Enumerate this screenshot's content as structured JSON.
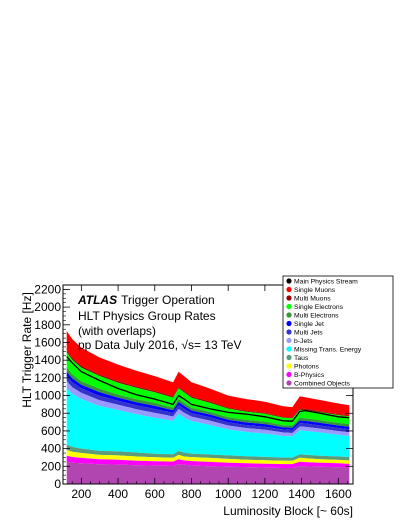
{
  "chart_data": {
    "type": "area",
    "stacked": true,
    "title": "",
    "annotation": {
      "experiment": "ATLAS",
      "line1_rest": "Trigger Operation",
      "line2": "HLT Physics Group Rates",
      "line3": "(with overlaps)",
      "line4_prefix": "pp Data July 2016, ",
      "line4_root": "√s",
      "line4_suffix": "= 13 TeV"
    },
    "xlabel": "Luminosity Block [~ 60s]",
    "ylabel": "HLT Trigger Rate [Hz]",
    "xlim": [
      100,
      1680
    ],
    "ylim": [
      0,
      2250
    ],
    "xticks": [
      200,
      400,
      600,
      800,
      1000,
      1200,
      1400,
      1600
    ],
    "yticks": [
      0,
      200,
      400,
      600,
      800,
      1000,
      1200,
      1400,
      1600,
      1800,
      2000,
      2200
    ],
    "legend_position": "top-right",
    "x": [
      120,
      150,
      200,
      300,
      400,
      500,
      600,
      700,
      730,
      760,
      800,
      900,
      1000,
      1100,
      1200,
      1300,
      1350,
      1390,
      1420,
      1500,
      1600,
      1660
    ],
    "total": [
      1730,
      1640,
      1540,
      1430,
      1350,
      1280,
      1220,
      1150,
      1270,
      1220,
      1150,
      1080,
      1000,
      960,
      930,
      880,
      870,
      990,
      980,
      950,
      910,
      890
    ],
    "series": [
      {
        "name": "Combined Objects",
        "color": "#b146b1",
        "values": [
          250,
          240,
          235,
          225,
          220,
          215,
          210,
          205,
          230,
          220,
          210,
          205,
          200,
          195,
          190,
          185,
          185,
          210,
          205,
          200,
          195,
          190
        ]
      },
      {
        "name": "B-Physics",
        "color": "#ff00ff",
        "values": [
          70,
          65,
          60,
          55,
          55,
          50,
          50,
          50,
          55,
          50,
          50,
          50,
          45,
          45,
          45,
          45,
          45,
          50,
          50,
          45,
          45,
          45
        ]
      },
      {
        "name": "Photons",
        "color": "#ffff00",
        "values": [
          65,
          60,
          55,
          50,
          50,
          50,
          45,
          45,
          50,
          45,
          45,
          45,
          45,
          40,
          40,
          40,
          40,
          45,
          45,
          40,
          40,
          40
        ]
      },
      {
        "name": "Taus",
        "color": "#5c9b7b",
        "values": [
          60,
          55,
          50,
          45,
          45,
          45,
          40,
          40,
          45,
          45,
          40,
          40,
          40,
          40,
          40,
          35,
          35,
          40,
          40,
          40,
          40,
          40
        ]
      },
      {
        "name": "Missing Trans. Energy",
        "color": "#00ffff",
        "values": [
          640,
          600,
          560,
          510,
          470,
          440,
          410,
          380,
          430,
          400,
          370,
          340,
          300,
          280,
          270,
          250,
          245,
          280,
          280,
          270,
          250,
          245
        ]
      },
      {
        "name": "b-Jets",
        "color": "#9999ff",
        "values": [
          80,
          75,
          70,
          65,
          60,
          55,
          55,
          50,
          55,
          55,
          50,
          50,
          45,
          45,
          45,
          40,
          40,
          45,
          45,
          45,
          45,
          45
        ]
      },
      {
        "name": "Multi Jets",
        "color": "#3333cc",
        "values": [
          60,
          55,
          50,
          50,
          45,
          45,
          45,
          40,
          45,
          45,
          40,
          40,
          35,
          35,
          35,
          35,
          35,
          40,
          40,
          35,
          35,
          35
        ]
      },
      {
        "name": "Single Jet",
        "color": "#0000ff",
        "values": [
          45,
          45,
          40,
          40,
          35,
          35,
          35,
          30,
          35,
          35,
          30,
          30,
          30,
          30,
          30,
          25,
          25,
          30,
          30,
          30,
          30,
          30
        ]
      },
      {
        "name": "Multi Electrons",
        "color": "#339933",
        "values": [
          50,
          45,
          40,
          40,
          35,
          35,
          35,
          30,
          35,
          35,
          30,
          30,
          30,
          30,
          30,
          25,
          25,
          30,
          30,
          30,
          30,
          30
        ]
      },
      {
        "name": "Single Electrons",
        "color": "#00ff00",
        "values": [
          170,
          165,
          155,
          145,
          135,
          130,
          120,
          115,
          125,
          120,
          115,
          105,
          100,
          95,
          90,
          85,
          85,
          95,
          95,
          95,
          90,
          90
        ]
      },
      {
        "name": "Multi Muons",
        "color": "#990000",
        "values": [
          20,
          20,
          20,
          15,
          15,
          15,
          15,
          15,
          15,
          15,
          15,
          15,
          10,
          10,
          10,
          10,
          10,
          15,
          15,
          10,
          10,
          10
        ]
      },
      {
        "name": "Single Muons",
        "color": "#ff0000",
        "values": [
          220,
          215,
          205,
          195,
          190,
          180,
          170,
          160,
          175,
          170,
          160,
          150,
          140,
          135,
          130,
          125,
          120,
          140,
          135,
          130,
          125,
          120
        ]
      }
    ],
    "main_stream": {
      "name": "Main Physics Stream",
      "color": "#000000",
      "values": [
        1440,
        1370,
        1270,
        1170,
        1080,
        1010,
        960,
        900,
        1000,
        960,
        900,
        850,
        810,
        790,
        760,
        715,
        710,
        820,
        830,
        800,
        760,
        750
      ]
    },
    "legend_order": [
      "Main Physics Stream",
      "Single Muons",
      "Multi Muons",
      "Single Electrons",
      "Multi Electrons",
      "Single Jet",
      "Multi Jets",
      "b-Jets",
      "Missing Trans. Energy",
      "Taus",
      "Photons",
      "B-Physics",
      "Combined Objects"
    ]
  }
}
